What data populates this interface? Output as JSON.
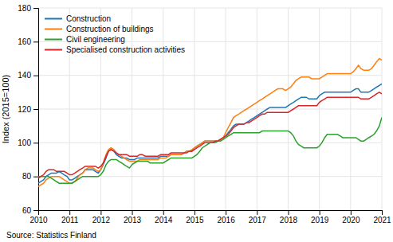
{
  "chart_data": {
    "type": "line",
    "y_label": "Index (2015=100)",
    "annotations": [
      "Source: Statistics Finland"
    ],
    "xlim": [
      2010,
      2021
    ],
    "ylim": [
      60,
      180
    ],
    "xticks": [
      2010,
      2011,
      2012,
      2013,
      2014,
      2015,
      2016,
      2017,
      2018,
      2019,
      2020,
      2021
    ],
    "yticks": [
      60,
      80,
      100,
      120,
      140,
      160,
      180
    ],
    "grid": true,
    "legend": "upper left",
    "x": [
      2010.0,
      2010.08,
      2010.17,
      2010.25,
      2010.33,
      2010.42,
      2010.5,
      2010.58,
      2010.67,
      2010.75,
      2010.83,
      2010.92,
      2011.0,
      2011.08,
      2011.17,
      2011.25,
      2011.33,
      2011.42,
      2011.5,
      2011.58,
      2011.67,
      2011.75,
      2011.83,
      2011.92,
      2012.0,
      2012.08,
      2012.17,
      2012.25,
      2012.33,
      2012.42,
      2012.5,
      2012.58,
      2012.67,
      2012.75,
      2012.83,
      2012.92,
      2013.0,
      2013.08,
      2013.17,
      2013.25,
      2013.33,
      2013.42,
      2013.5,
      2013.58,
      2013.67,
      2013.75,
      2013.83,
      2013.92,
      2014.0,
      2014.08,
      2014.17,
      2014.25,
      2014.33,
      2014.42,
      2014.5,
      2014.58,
      2014.67,
      2014.75,
      2014.83,
      2014.92,
      2015.0,
      2015.08,
      2015.17,
      2015.25,
      2015.33,
      2015.42,
      2015.5,
      2015.58,
      2015.67,
      2015.75,
      2015.83,
      2015.92,
      2016.0,
      2016.08,
      2016.17,
      2016.25,
      2016.33,
      2016.42,
      2016.5,
      2016.58,
      2016.67,
      2016.75,
      2016.83,
      2016.92,
      2017.0,
      2017.08,
      2017.17,
      2017.25,
      2017.33,
      2017.42,
      2017.5,
      2017.58,
      2017.67,
      2017.75,
      2017.83,
      2017.92,
      2018.0,
      2018.08,
      2018.17,
      2018.25,
      2018.33,
      2018.42,
      2018.5,
      2018.58,
      2018.67,
      2018.75,
      2018.83,
      2018.92,
      2019.0,
      2019.08,
      2019.17,
      2019.25,
      2019.33,
      2019.42,
      2019.5,
      2019.58,
      2019.67,
      2019.75,
      2019.83,
      2019.92,
      2020.0,
      2020.08,
      2020.17,
      2020.25,
      2020.33,
      2020.42,
      2020.5,
      2020.58,
      2020.67,
      2020.75,
      2020.83,
      2020.92,
      2021.0
    ],
    "series": [
      {
        "name": "Construction",
        "values": [
          76,
          77,
          78,
          80,
          81,
          82,
          82,
          82,
          83,
          82,
          81,
          80,
          78,
          78,
          79,
          80,
          81,
          82,
          84,
          84,
          84,
          84,
          83,
          82,
          84,
          87,
          91,
          95,
          96,
          95,
          93,
          92,
          91,
          91,
          91,
          90,
          90,
          90,
          91,
          91,
          91,
          91,
          91,
          91,
          91,
          91,
          91,
          92,
          92,
          92,
          92,
          93,
          93,
          93,
          93,
          93,
          94,
          95,
          95,
          95,
          97,
          98,
          99,
          100,
          101,
          101,
          101,
          101,
          101,
          101,
          102,
          103,
          104,
          106,
          108,
          110,
          111,
          111,
          111,
          111,
          112,
          113,
          114,
          115,
          116,
          117,
          118,
          119,
          120,
          121,
          121,
          121,
          121,
          121,
          121,
          121,
          122,
          123,
          124,
          125,
          126,
          127,
          127,
          127,
          126,
          126,
          126,
          126,
          128,
          129,
          130,
          130,
          130,
          130,
          130,
          130,
          130,
          130,
          130,
          130,
          130,
          131,
          132,
          132,
          130,
          130,
          130,
          130,
          131,
          132,
          133,
          134,
          135
        ]
      },
      {
        "name": "Construction of buildings",
        "values": [
          74,
          75,
          76,
          78,
          79,
          80,
          80,
          80,
          80,
          79,
          78,
          77,
          76,
          76,
          77,
          79,
          81,
          82,
          84,
          85,
          85,
          85,
          84,
          83,
          84,
          88,
          93,
          96,
          97,
          96,
          94,
          93,
          92,
          91,
          90,
          89,
          89,
          89,
          89,
          90,
          90,
          90,
          90,
          90,
          90,
          90,
          90,
          91,
          91,
          91,
          92,
          93,
          93,
          93,
          93,
          93,
          94,
          95,
          95,
          96,
          97,
          98,
          99,
          100,
          101,
          101,
          101,
          101,
          101,
          101,
          102,
          103,
          106,
          109,
          112,
          115,
          116,
          117,
          118,
          119,
          120,
          121,
          122,
          123,
          124,
          125,
          126,
          127,
          128,
          129,
          130,
          131,
          132,
          132,
          132,
          131,
          132,
          133,
          135,
          137,
          138,
          139,
          139,
          139,
          139,
          138,
          138,
          138,
          138,
          139,
          140,
          141,
          141,
          141,
          141,
          141,
          141,
          141,
          141,
          141,
          141,
          142,
          144,
          146,
          144,
          143,
          143,
          143,
          144,
          146,
          148,
          150,
          149
        ]
      },
      {
        "name": "Civil engineering",
        "values": [
          80,
          80,
          80,
          80,
          80,
          79,
          78,
          77,
          76,
          76,
          76,
          76,
          76,
          76,
          77,
          78,
          79,
          80,
          80,
          80,
          80,
          80,
          80,
          80,
          81,
          83,
          87,
          89,
          90,
          90,
          90,
          89,
          88,
          87,
          86,
          85,
          87,
          88,
          89,
          89,
          89,
          89,
          89,
          88,
          88,
          88,
          88,
          88,
          88,
          89,
          90,
          91,
          91,
          91,
          91,
          91,
          91,
          91,
          91,
          91,
          92,
          93,
          95,
          97,
          98,
          99,
          100,
          100,
          100,
          101,
          101,
          102,
          103,
          104,
          105,
          106,
          106,
          106,
          106,
          106,
          106,
          106,
          106,
          106,
          106,
          106,
          107,
          107,
          107,
          107,
          107,
          107,
          107,
          107,
          107,
          107,
          107,
          106,
          104,
          101,
          99,
          98,
          97,
          97,
          97,
          97,
          97,
          97,
          98,
          100,
          103,
          105,
          105,
          105,
          105,
          105,
          104,
          103,
          103,
          103,
          103,
          103,
          103,
          102,
          101,
          101,
          102,
          103,
          104,
          105,
          107,
          110,
          115
        ]
      },
      {
        "name": "Specialised construction activities",
        "values": [
          79,
          80,
          81,
          83,
          84,
          84,
          84,
          83,
          83,
          83,
          83,
          82,
          81,
          81,
          82,
          83,
          84,
          85,
          86,
          86,
          86,
          86,
          86,
          85,
          86,
          88,
          92,
          95,
          96,
          95,
          94,
          93,
          93,
          93,
          93,
          92,
          92,
          92,
          92,
          93,
          93,
          92,
          92,
          92,
          92,
          92,
          92,
          93,
          93,
          93,
          93,
          94,
          94,
          94,
          94,
          94,
          94,
          94,
          95,
          95,
          96,
          97,
          98,
          99,
          100,
          100,
          100,
          100,
          101,
          101,
          102,
          103,
          104,
          105,
          107,
          109,
          110,
          111,
          111,
          111,
          112,
          112,
          113,
          114,
          115,
          116,
          117,
          117,
          118,
          118,
          118,
          118,
          118,
          118,
          118,
          118,
          118,
          119,
          120,
          121,
          122,
          122,
          122,
          122,
          122,
          122,
          122,
          122,
          124,
          125,
          126,
          127,
          127,
          127,
          127,
          127,
          127,
          127,
          127,
          127,
          127,
          127,
          127,
          127,
          126,
          126,
          126,
          126,
          127,
          128,
          129,
          130,
          129
        ]
      }
    ]
  }
}
